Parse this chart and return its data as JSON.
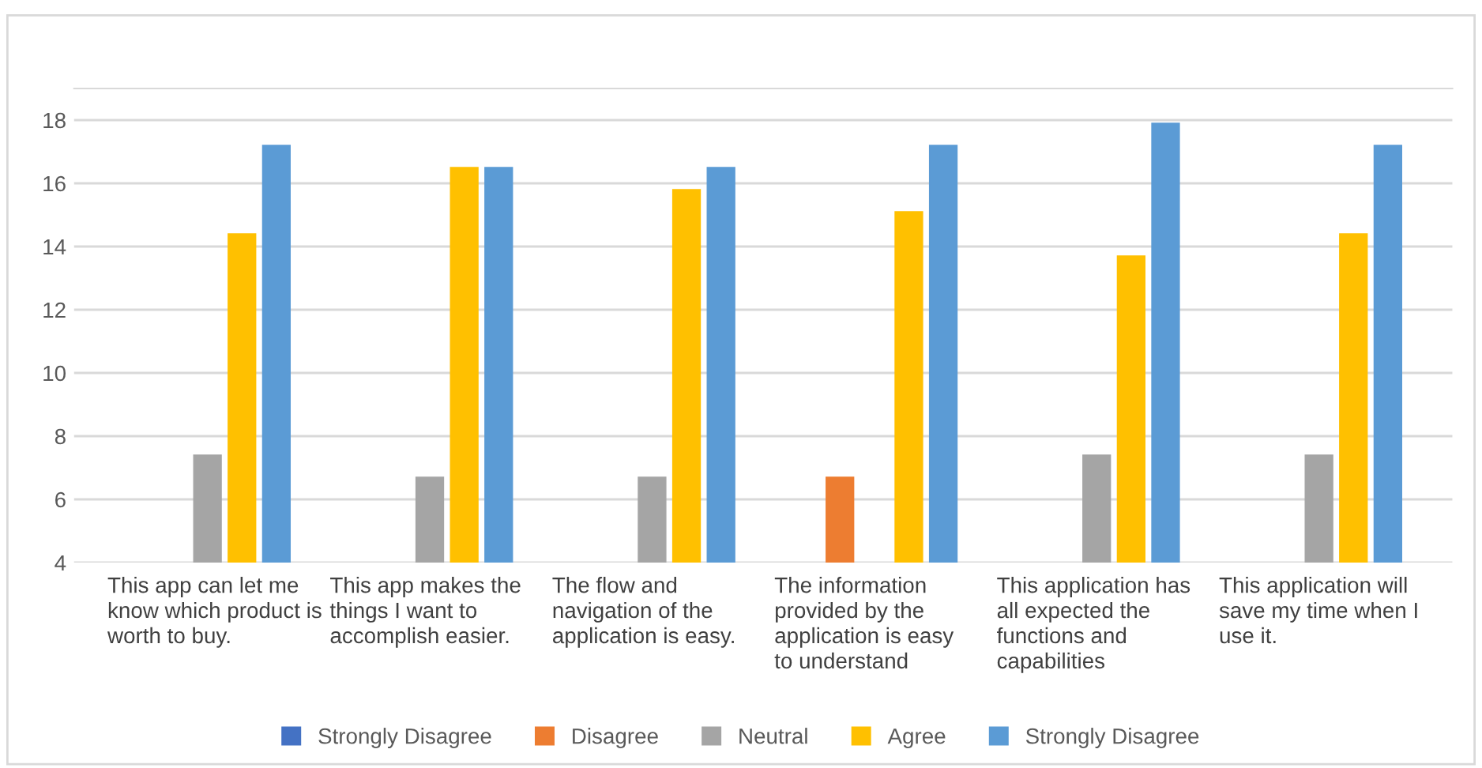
{
  "chart_data": {
    "type": "bar",
    "categories": [
      "This app can let me know which product is worth to buy.",
      "This app makes the things I want to accomplish easier.",
      "The flow and navigation of the application is easy.",
      "The information provided by the application is easy to understand",
      "This application has all expected the functions and capabilities",
      "This application will save my time when I use it."
    ],
    "series": [
      {
        "name": "Strongly Disagree",
        "color": "#4472c4",
        "values": [
          null,
          null,
          null,
          null,
          null,
          null
        ]
      },
      {
        "name": "Disagree",
        "color": "#ed7d31",
        "values": [
          null,
          null,
          null,
          6.7,
          null,
          null
        ]
      },
      {
        "name": "Neutral",
        "color": "#a5a5a5",
        "values": [
          7.4,
          6.7,
          6.7,
          null,
          7.4,
          7.4
        ]
      },
      {
        "name": "Agree",
        "color": "#ffc000",
        "values": [
          14.4,
          16.5,
          15.8,
          15.1,
          13.7,
          14.4
        ]
      },
      {
        "name": "Strongly Disagree",
        "color": "#5b9bd5",
        "values": [
          17.2,
          16.5,
          16.5,
          17.2,
          17.9,
          17.2
        ]
      }
    ],
    "ylim": [
      4,
      19
    ],
    "yticks": [
      4,
      6,
      8,
      10,
      12,
      14,
      16,
      18
    ],
    "grid": "y",
    "legend": "bottom"
  }
}
